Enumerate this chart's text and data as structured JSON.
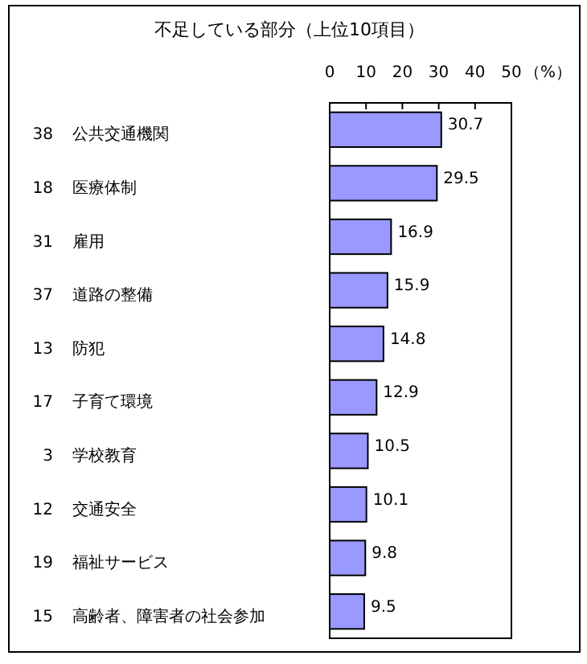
{
  "chart_data": {
    "type": "bar",
    "orientation": "horizontal",
    "title": "不足している部分（上位10項目）",
    "xlabel": "（%）",
    "categories": [
      "38 公共交通機関",
      "18 医療体制",
      "31 雇用",
      "37 道路の整備",
      "13 防犯",
      "17 子育て環境",
      "3 学校教育",
      "12 交通安全",
      "19 福祉サービス",
      "15 高齢者、障害者の社会参加"
    ],
    "values": [
      30.7,
      29.5,
      16.9,
      15.9,
      14.8,
      12.9,
      10.5,
      10.1,
      9.8,
      9.5
    ],
    "color": "#9999ff",
    "xlim": [
      0,
      50
    ],
    "xticks": [
      0,
      10,
      20,
      30,
      40,
      50
    ],
    "data_labels": true
  }
}
